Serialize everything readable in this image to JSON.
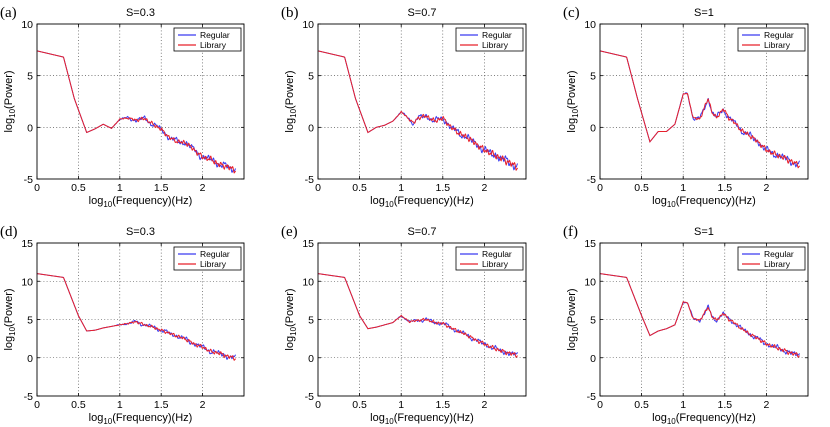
{
  "chart_data": [
    {
      "panel": "(a)",
      "type": "line",
      "title": "S=0.3",
      "xlabel": "log10(Frequency)(Hz)",
      "ylabel": "log10(Power)",
      "xlim": [
        0,
        2.5
      ],
      "ylim": [
        -5,
        10
      ],
      "xticks": [
        "0",
        "0.5",
        "1",
        "1.5",
        "2"
      ],
      "yticks": [
        "-5",
        "0",
        "5",
        "10"
      ],
      "grid": true,
      "legend": "top-right",
      "series": [
        {
          "name": "Regular",
          "color": "#3a3af0"
        },
        {
          "name": "Library",
          "color": "#e8202a"
        }
      ],
      "anchors": [
        [
          0,
          7.4
        ],
        [
          0.32,
          6.8
        ],
        [
          0.45,
          2.8
        ],
        [
          0.6,
          -0.5
        ],
        [
          0.7,
          -0.15
        ],
        [
          0.8,
          0.3
        ],
        [
          0.9,
          -0.1
        ],
        [
          1,
          0.8
        ],
        [
          1.1,
          0.9
        ],
        [
          1.2,
          0.7
        ],
        [
          1.3,
          0.85
        ],
        [
          1.4,
          0.3
        ],
        [
          1.5,
          -0.2
        ],
        [
          1.6,
          -1
        ],
        [
          1.7,
          -1.4
        ],
        [
          1.8,
          -1.5
        ],
        [
          1.9,
          -2.2
        ],
        [
          2,
          -2.9
        ],
        [
          2.1,
          -3.1
        ],
        [
          2.2,
          -3.6
        ],
        [
          2.3,
          -3.8
        ],
        [
          2.4,
          -4.2
        ]
      ],
      "noise_start": 0.9,
      "noise_amp": 0.25
    },
    {
      "panel": "(b)",
      "type": "line",
      "title": "S=0.7",
      "xlabel": "log10(Frequency)(Hz)",
      "ylabel": "log10(Power)",
      "xlim": [
        0,
        2.5
      ],
      "ylim": [
        -5,
        10
      ],
      "xticks": [
        "0",
        "0.5",
        "1",
        "1.5",
        "2"
      ],
      "yticks": [
        "-5",
        "0",
        "5",
        "10"
      ],
      "grid": true,
      "legend": "top-right",
      "series": [
        {
          "name": "Regular",
          "color": "#3a3af0"
        },
        {
          "name": "Library",
          "color": "#e8202a"
        }
      ],
      "anchors": [
        [
          0,
          7.4
        ],
        [
          0.32,
          6.8
        ],
        [
          0.45,
          2.8
        ],
        [
          0.6,
          -0.5
        ],
        [
          0.7,
          0
        ],
        [
          0.8,
          0.2
        ],
        [
          0.9,
          0.6
        ],
        [
          1,
          1.5
        ],
        [
          1.08,
          0.9
        ],
        [
          1.15,
          0.4
        ],
        [
          1.2,
          0.9
        ],
        [
          1.3,
          1.1
        ],
        [
          1.4,
          0.6
        ],
        [
          1.5,
          0.9
        ],
        [
          1.6,
          0
        ],
        [
          1.7,
          -0.6
        ],
        [
          1.8,
          -1
        ],
        [
          1.9,
          -1.6
        ],
        [
          2,
          -2.2
        ],
        [
          2.1,
          -2.6
        ],
        [
          2.2,
          -3
        ],
        [
          2.3,
          -3.4
        ],
        [
          2.4,
          -3.9
        ]
      ],
      "noise_start": 0.9,
      "noise_amp": 0.3
    },
    {
      "panel": "(c)",
      "type": "line",
      "title": "S=1",
      "xlabel": "log10(Frequency)(Hz)",
      "ylabel": "log10(Power)",
      "xlim": [
        0,
        2.5
      ],
      "ylim": [
        -5,
        10
      ],
      "xticks": [
        "0",
        "0.5",
        "1",
        "1.5",
        "2"
      ],
      "yticks": [
        "-5",
        "0",
        "5",
        "10"
      ],
      "grid": true,
      "legend": "top-right",
      "series": [
        {
          "name": "Regular",
          "color": "#3a3af0"
        },
        {
          "name": "Library",
          "color": "#e8202a"
        }
      ],
      "anchors": [
        [
          0,
          7.4
        ],
        [
          0.32,
          6.8
        ],
        [
          0.45,
          2.8
        ],
        [
          0.6,
          -1.4
        ],
        [
          0.7,
          -0.4
        ],
        [
          0.8,
          -0.4
        ],
        [
          0.9,
          0.3
        ],
        [
          1,
          3.2
        ],
        [
          1.05,
          3.3
        ],
        [
          1.12,
          0.9
        ],
        [
          1.2,
          0.8
        ],
        [
          1.3,
          2.8
        ],
        [
          1.35,
          1.4
        ],
        [
          1.4,
          0.9
        ],
        [
          1.48,
          1.8
        ],
        [
          1.55,
          0.9
        ],
        [
          1.6,
          0.6
        ],
        [
          1.7,
          -0.3
        ],
        [
          1.8,
          -0.8
        ],
        [
          1.9,
          -1.4
        ],
        [
          2,
          -2.2
        ],
        [
          2.1,
          -2.6
        ],
        [
          2.2,
          -2.9
        ],
        [
          2.3,
          -3.3
        ],
        [
          2.4,
          -3.7
        ]
      ],
      "noise_start": 0.9,
      "noise_amp": 0.25
    },
    {
      "panel": "(d)",
      "type": "line",
      "title": "S=0.3",
      "xlabel": "log10(Frequency)(Hz)",
      "ylabel": "log10(Power)",
      "xlim": [
        0,
        2.5
      ],
      "ylim": [
        -5,
        15
      ],
      "xticks": [
        "0",
        "0.5",
        "1",
        "1.5",
        "2"
      ],
      "yticks": [
        "-5",
        "0",
        "5",
        "10",
        "15"
      ],
      "grid": true,
      "legend": "top-right",
      "series": [
        {
          "name": "Regular",
          "color": "#3a3af0"
        },
        {
          "name": "Library",
          "color": "#e8202a"
        }
      ],
      "anchors": [
        [
          0,
          11
        ],
        [
          0.32,
          10.5
        ],
        [
          0.5,
          5.5
        ],
        [
          0.6,
          3.5
        ],
        [
          0.7,
          3.6
        ],
        [
          0.8,
          3.9
        ],
        [
          0.9,
          4.1
        ],
        [
          1,
          4.3
        ],
        [
          1.1,
          4.5
        ],
        [
          1.2,
          4.7
        ],
        [
          1.3,
          4.3
        ],
        [
          1.4,
          4.0
        ],
        [
          1.5,
          3.6
        ],
        [
          1.6,
          3.2
        ],
        [
          1.7,
          2.8
        ],
        [
          1.8,
          2.4
        ],
        [
          1.9,
          1.8
        ],
        [
          2,
          1.4
        ],
        [
          2.1,
          0.8
        ],
        [
          2.2,
          0.6
        ],
        [
          2.3,
          0.2
        ],
        [
          2.4,
          -0.1
        ]
      ],
      "noise_start": 0.9,
      "noise_amp": 0.25
    },
    {
      "panel": "(e)",
      "type": "line",
      "title": "S=0.7",
      "xlabel": "log10(Frequency)(Hz)",
      "ylabel": "log10(Power)",
      "xlim": [
        0,
        2.5
      ],
      "ylim": [
        -5,
        15
      ],
      "xticks": [
        "0",
        "0.5",
        "1",
        "1.5",
        "2"
      ],
      "yticks": [
        "-5",
        "0",
        "5",
        "10",
        "15"
      ],
      "grid": true,
      "legend": "top-right",
      "series": [
        {
          "name": "Regular",
          "color": "#3a3af0"
        },
        {
          "name": "Library",
          "color": "#e8202a"
        }
      ],
      "anchors": [
        [
          0,
          11
        ],
        [
          0.32,
          10.5
        ],
        [
          0.5,
          5.5
        ],
        [
          0.6,
          3.8
        ],
        [
          0.7,
          4.0
        ],
        [
          0.8,
          4.3
        ],
        [
          0.9,
          4.6
        ],
        [
          1,
          5.5
        ],
        [
          1.1,
          4.7
        ],
        [
          1.2,
          4.9
        ],
        [
          1.3,
          5.0
        ],
        [
          1.4,
          4.6
        ],
        [
          1.5,
          4.5
        ],
        [
          1.6,
          3.9
        ],
        [
          1.7,
          3.4
        ],
        [
          1.8,
          2.9
        ],
        [
          1.9,
          2.3
        ],
        [
          2,
          1.8
        ],
        [
          2.1,
          1.3
        ],
        [
          2.2,
          0.9
        ],
        [
          2.3,
          0.6
        ],
        [
          2.4,
          0.3
        ]
      ],
      "noise_start": 0.9,
      "noise_amp": 0.25
    },
    {
      "panel": "(f)",
      "type": "line",
      "title": "S=1",
      "xlabel": "log10(Frequency)(Hz)",
      "ylabel": "log10(Power)",
      "xlim": [
        0,
        2.5
      ],
      "ylim": [
        -5,
        15
      ],
      "xticks": [
        "0",
        "0.5",
        "1",
        "1.5",
        "2"
      ],
      "yticks": [
        "-5",
        "0",
        "5",
        "10",
        "15"
      ],
      "grid": true,
      "legend": "top-right",
      "series": [
        {
          "name": "Regular",
          "color": "#3a3af0"
        },
        {
          "name": "Library",
          "color": "#e8202a"
        }
      ],
      "anchors": [
        [
          0,
          11
        ],
        [
          0.32,
          10.5
        ],
        [
          0.5,
          5.5
        ],
        [
          0.6,
          2.9
        ],
        [
          0.7,
          3.5
        ],
        [
          0.8,
          3.8
        ],
        [
          0.9,
          4.3
        ],
        [
          1,
          7.3
        ],
        [
          1.05,
          7.2
        ],
        [
          1.12,
          5.1
        ],
        [
          1.2,
          4.9
        ],
        [
          1.3,
          6.6
        ],
        [
          1.35,
          5.3
        ],
        [
          1.4,
          4.9
        ],
        [
          1.48,
          5.8
        ],
        [
          1.55,
          5.0
        ],
        [
          1.6,
          4.7
        ],
        [
          1.7,
          3.8
        ],
        [
          1.8,
          3.1
        ],
        [
          1.9,
          2.5
        ],
        [
          2,
          1.8
        ],
        [
          2.1,
          1.4
        ],
        [
          2.2,
          1.0
        ],
        [
          2.3,
          0.6
        ],
        [
          2.4,
          0.3
        ]
      ],
      "noise_start": 0.9,
      "noise_amp": 0.25
    }
  ]
}
